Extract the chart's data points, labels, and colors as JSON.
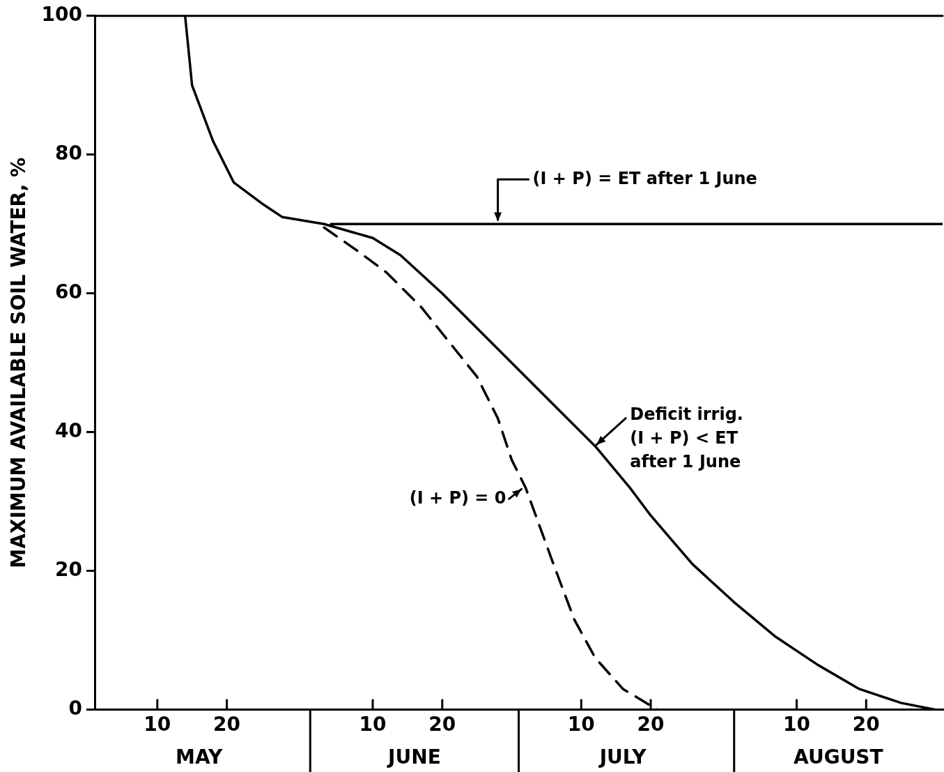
{
  "chart_data": {
    "type": "line",
    "ylabel": "MAXIMUM AVAILABLE SOIL WATER, %",
    "xlim": [
      "--05-01",
      "--08-31"
    ],
    "xticks": [
      {
        "value": "--05-10",
        "label": "10"
      },
      {
        "value": "--05-20",
        "label": "20"
      },
      {
        "value": "--06-10",
        "label": "10"
      },
      {
        "value": "--06-20",
        "label": "20"
      },
      {
        "value": "--07-10",
        "label": "10"
      },
      {
        "value": "--07-20",
        "label": "20"
      },
      {
        "value": "--08-10",
        "label": "10"
      },
      {
        "value": "--08-20",
        "label": "20"
      }
    ],
    "x2lim": [
      "--05-01",
      "--08-31"
    ],
    "x2ticks": [
      {
        "value": "--05-16",
        "label": "MAY"
      },
      {
        "value": "--06-16",
        "label": "JUNE"
      },
      {
        "value": "--07-16",
        "label": "JULY"
      },
      {
        "value": "--08-16",
        "label": "AUGUST"
      }
    ],
    "ylim": [
      0,
      100
    ],
    "yticks": [
      0,
      20,
      40,
      60,
      80,
      100
    ],
    "grid": false,
    "legend": false,
    "marker": "none",
    "series": [
      {
        "color": "#000000",
        "line_style": "solid",
        "x": [
          "--06-04",
          "--08-31"
        ],
        "values": [
          70,
          70
        ]
      },
      {
        "color": "#000000",
        "line_style": "solid",
        "x": [
          "--05-14",
          "--05-15",
          "--05-18",
          "--05-21",
          "--05-25",
          "--05-28",
          "--06-03",
          "--06-10",
          "--06-14",
          "--06-20",
          "--06-26",
          "--07-02",
          "--07-08",
          "--07-12",
          "--07-17",
          "--07-20",
          "--07-26",
          "--08-01",
          "--08-07",
          "--08-13",
          "--08-19",
          "--08-25",
          "--08-30"
        ],
        "values": [
          100,
          90,
          82,
          76,
          73,
          71,
          70,
          68,
          65.5,
          60,
          54,
          48,
          42,
          38,
          32,
          28,
          21,
          15.5,
          10.5,
          6.5,
          3,
          1,
          0
        ]
      },
      {
        "color": "#000000",
        "line_style": "dashed",
        "x": [
          "--06-03",
          "--06-08",
          "--06-12",
          "--06-17",
          "--06-21",
          "--06-25",
          "--06-28",
          "--06-30",
          "--07-02",
          "--07-06",
          "--07-09",
          "--07-12",
          "--07-16",
          "--07-21"
        ],
        "values": [
          69.5,
          66,
          63,
          58,
          53,
          48,
          42,
          36,
          32,
          21,
          13,
          7.5,
          3,
          0
        ]
      }
    ],
    "annotations": [
      {
        "text": "(I + P) = ET after 1 June",
        "x": "--06-28",
        "y": 70
      },
      {
        "text": "Deficit irrig.\n(I + P) < ET\nafter 1 June",
        "x": "--07-12",
        "y": 38
      },
      {
        "text": "(I + P) = 0",
        "x": "--07-02",
        "y": 32
      }
    ]
  }
}
